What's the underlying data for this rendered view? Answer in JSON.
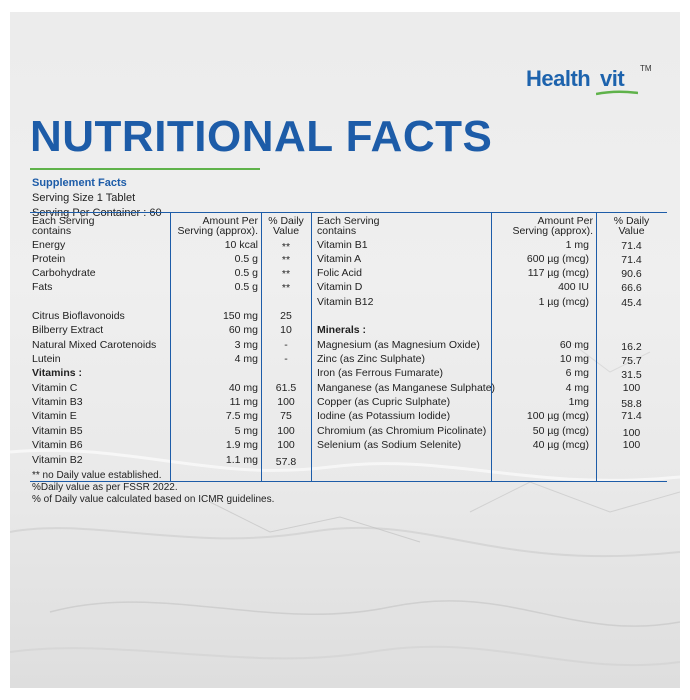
{
  "brand": {
    "health": "Health",
    "vit": "vit",
    "tm": "TM"
  },
  "title": "NUTRITIONAL FACTS",
  "supplement": {
    "heading": "Supplement Facts",
    "serving_size": "Serving Size 1 Tablet",
    "servings_per_container": "Serving Per Container : 60"
  },
  "left_header": {
    "col1": [
      "Each Serving",
      "contains"
    ],
    "col2": [
      "Amount Per",
      "Serving (approx)."
    ],
    "col3": [
      "% Daily",
      "Value"
    ]
  },
  "right_header": {
    "col1": [
      "Each Serving",
      "contains"
    ],
    "col2": [
      "Amount Per",
      "Serving (approx)."
    ],
    "col3": [
      "% Daily",
      "Value"
    ]
  },
  "left_rows": [
    {
      "name": "Energy",
      "amount": "10 kcal",
      "dv": "**"
    },
    {
      "name": "Protein",
      "amount": "0.5 g",
      "dv": "**"
    },
    {
      "name": "Carbohydrate",
      "amount": "0.5 g",
      "dv": "**"
    },
    {
      "name": "Fats",
      "amount": "0.5 g",
      "dv": "**"
    },
    {
      "name": "Citrus Bioflavonoids",
      "amount": "150 mg",
      "dv": "25"
    },
    {
      "name": "Bilberry Extract",
      "amount": "60 mg",
      "dv": "10"
    },
    {
      "name": "Natural Mixed Carotenoids",
      "amount": "3 mg",
      "dv": "-"
    },
    {
      "name": "Lutein",
      "amount": "4 mg",
      "dv": "-"
    },
    {
      "name": "Vitamins :",
      "amount": "",
      "dv": ""
    },
    {
      "name": "Vitamin C",
      "amount": "40 mg",
      "dv": "61.5"
    },
    {
      "name": "Vitamin B3",
      "amount": "11 mg",
      "dv": "100"
    },
    {
      "name": "Vitamin E",
      "amount": "7.5 mg",
      "dv": "75"
    },
    {
      "name": "Vitamin B5",
      "amount": "5 mg",
      "dv": "100"
    },
    {
      "name": "Vitamin B6",
      "amount": "1.9 mg",
      "dv": "100"
    },
    {
      "name": "Vitamin B2",
      "amount": "1.1 mg",
      "dv": "57.8"
    }
  ],
  "right_rows": [
    {
      "name": "Vitamin B1",
      "amount": "1 mg",
      "dv": "71.4"
    },
    {
      "name": "Vitamin A",
      "amount": "600 µg (mcg)",
      "dv": "71.4"
    },
    {
      "name": "Folic Acid",
      "amount": "117 µg (mcg)",
      "dv": "90.6"
    },
    {
      "name": "Vitamin D",
      "amount": "400 IU",
      "dv": "66.6"
    },
    {
      "name": "Vitamin B12",
      "amount": "1 µg (mcg)",
      "dv": "45.4"
    },
    {
      "name": "Minerals :",
      "amount": "",
      "dv": ""
    },
    {
      "name": "Magnesium (as Magnesium Oxide)",
      "amount": "60 mg",
      "dv": "16.2"
    },
    {
      "name": "Zinc (as Zinc Sulphate)",
      "amount": "10 mg",
      "dv": "75.7"
    },
    {
      "name": "Iron (as Ferrous Fumarate)",
      "amount": "6 mg",
      "dv": "31.5"
    },
    {
      "name": "Manganese (as Manganese Sulphate)",
      "amount": "4 mg",
      "dv": "100"
    },
    {
      "name": "Copper (as Cupric Sulphate)",
      "amount": "1mg",
      "dv": "58.8"
    },
    {
      "name": "Iodine (as Potassium Iodide)",
      "amount": "100 µg (mcg)",
      "dv": "71.4"
    },
    {
      "name": "Chromium (as Chromium Picolinate)",
      "amount": "50 µg (mcg)",
      "dv": "100"
    },
    {
      "name": "Selenium (as Sodium Selenite)",
      "amount": "40 µg (mcg)",
      "dv": "100"
    }
  ],
  "footnotes": [
    "** no Daily value established.",
    "%Daily value as per FSSR 2022.",
    "% of Daily value calculated based on ICMR guidelines."
  ],
  "colors": {
    "brand_blue": "#1d5ca8",
    "accent_green": "#5fb24a"
  }
}
